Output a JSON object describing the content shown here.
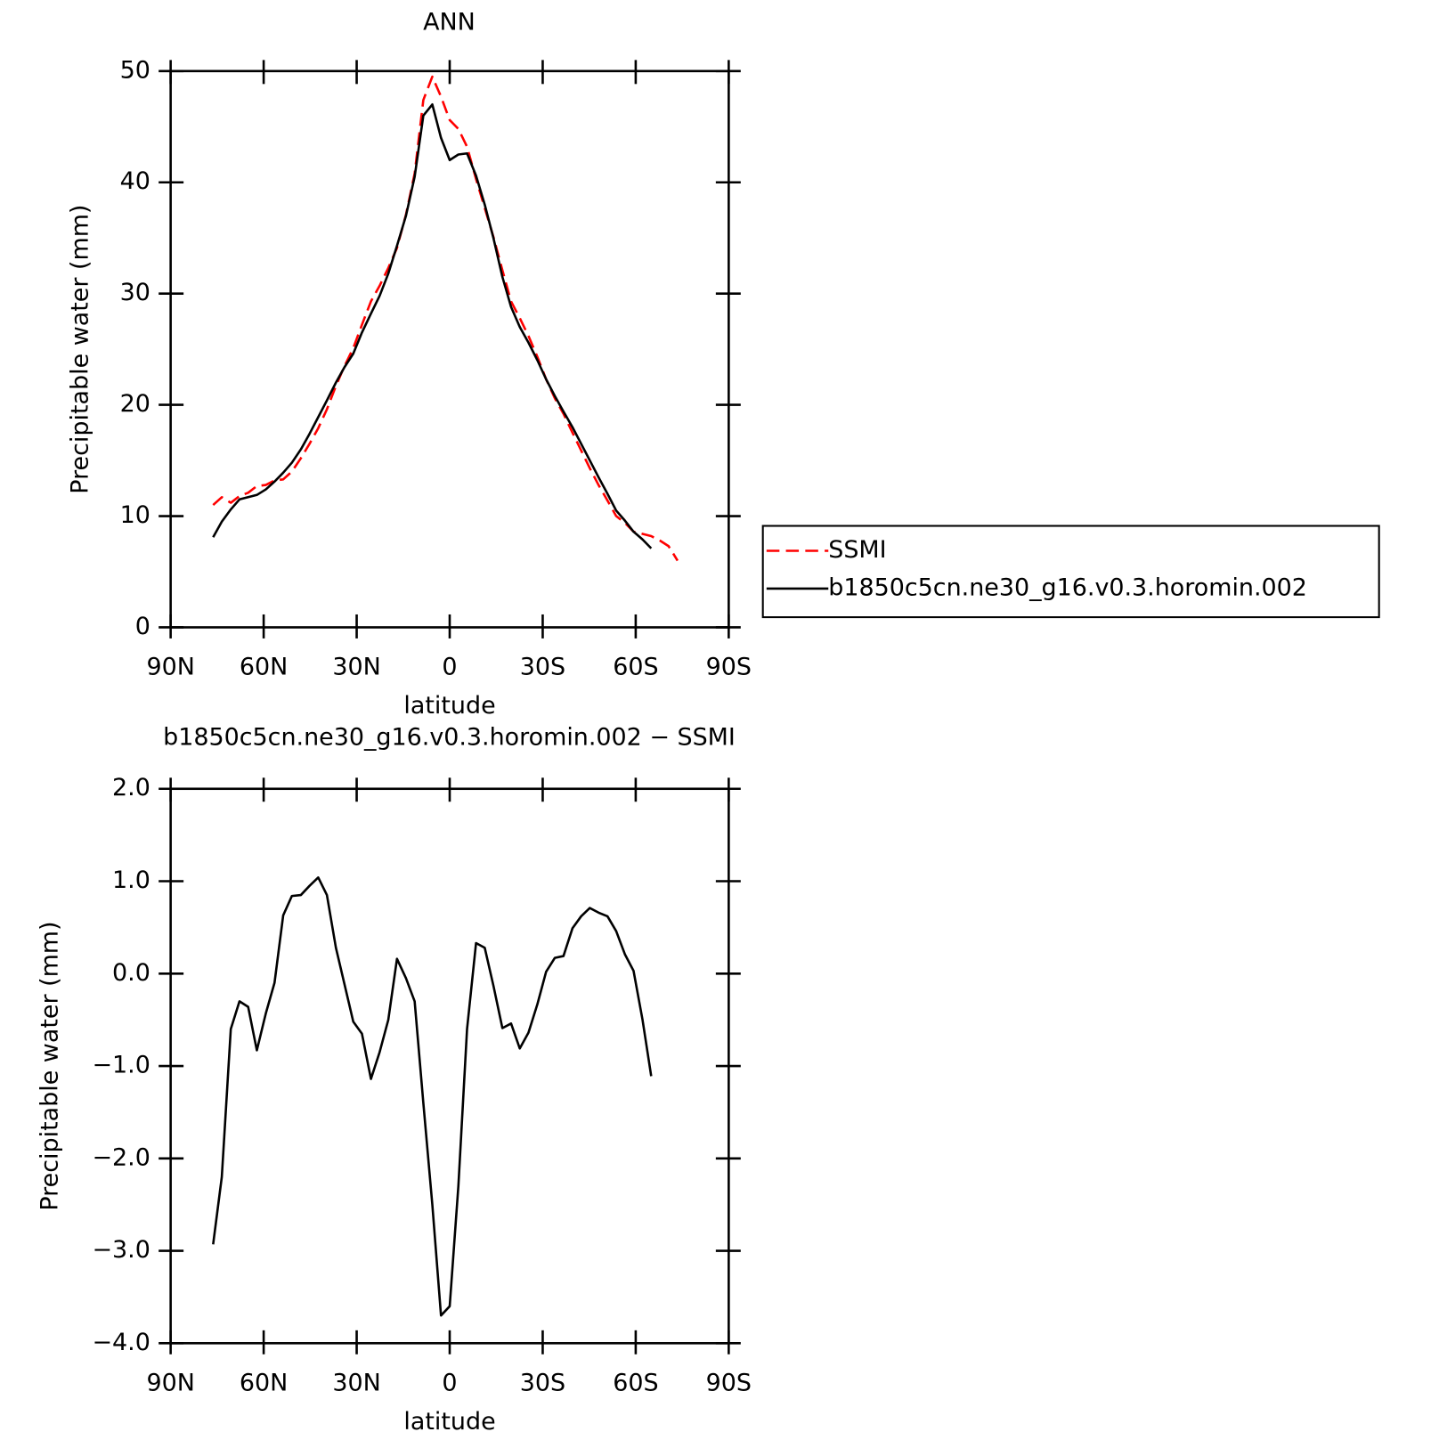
{
  "chart_data": [
    {
      "type": "line",
      "title": "ANN",
      "xlabel": "latitude",
      "ylabel": "Precipitable water (mm)",
      "xlim": [
        90,
        -90
      ],
      "xticks": [
        {
          "value": 90,
          "label": "90N"
        },
        {
          "value": 60,
          "label": "60N"
        },
        {
          "value": 30,
          "label": "30N"
        },
        0,
        {
          "value": -30,
          "label": "30S"
        },
        {
          "value": -60,
          "label": "60S"
        },
        {
          "value": -90,
          "label": "90S"
        }
      ],
      "ylim": [
        0,
        50
      ],
      "yticks": [
        0,
        10,
        20,
        30,
        40,
        50
      ],
      "legend": "outside-right",
      "series": [
        {
          "name": "SSMI",
          "color": "#ff0000",
          "dash": true,
          "x": [
            76.3,
            73.5,
            70.6,
            67.8,
            65.0,
            62.2,
            59.3,
            56.5,
            53.7,
            50.9,
            48.0,
            45.2,
            42.4,
            39.6,
            36.7,
            33.9,
            31.1,
            28.3,
            25.4,
            22.6,
            19.8,
            17.0,
            14.1,
            11.3,
            8.5,
            5.6,
            2.8,
            0.0,
            -2.8,
            -5.6,
            -8.5,
            -11.3,
            -14.1,
            -17.0,
            -19.8,
            -22.6,
            -25.4,
            -28.3,
            -31.1,
            -33.9,
            -36.7,
            -39.6,
            -42.4,
            -45.2,
            -48.0,
            -50.9,
            -53.7,
            -56.5,
            -59.3,
            -62.2,
            -65.0,
            -67.8,
            -70.6,
            -73.5
          ],
          "values": [
            11.0,
            11.7,
            11.2,
            11.8,
            12.1,
            12.7,
            12.8,
            13.2,
            13.3,
            14.0,
            15.2,
            16.5,
            17.9,
            19.6,
            21.7,
            23.5,
            25.1,
            27.2,
            29.3,
            30.7,
            32.3,
            34.1,
            37.1,
            40.8,
            47.4,
            49.5,
            47.7,
            45.6,
            44.8,
            43.2,
            40.3,
            37.7,
            35.1,
            32.1,
            29.3,
            27.8,
            26.2,
            24.3,
            22.3,
            20.6,
            19.2,
            17.5,
            15.9,
            14.3,
            12.8,
            11.4,
            10.0,
            9.4,
            8.6,
            8.4,
            8.2,
            7.8,
            7.3,
            6.0
          ]
        },
        {
          "name": "b1850c5cn.ne30_g16.v0.3.horomin.002",
          "color": "#000000",
          "dash": false,
          "x": [
            76.3,
            73.5,
            70.6,
            67.8,
            65.0,
            62.2,
            59.3,
            56.5,
            53.7,
            50.9,
            48.0,
            45.2,
            42.4,
            39.6,
            36.7,
            33.9,
            31.1,
            28.3,
            25.4,
            22.6,
            19.8,
            17.0,
            14.1,
            11.3,
            8.5,
            5.6,
            2.8,
            0.0,
            -2.8,
            -5.6,
            -8.5,
            -11.3,
            -14.1,
            -17.0,
            -19.8,
            -22.6,
            -25.4,
            -28.3,
            -31.1,
            -33.9,
            -36.7,
            -39.6,
            -42.4,
            -45.2,
            -48.0,
            -50.9,
            -53.7,
            -56.5,
            -59.3,
            -62.2,
            -65.0
          ],
          "values": [
            8.1,
            9.5,
            10.6,
            11.5,
            11.7,
            11.9,
            12.4,
            13.1,
            13.9,
            14.8,
            16.0,
            17.4,
            18.9,
            20.4,
            22.0,
            23.4,
            24.6,
            26.5,
            28.2,
            29.8,
            31.8,
            34.3,
            37.0,
            40.5,
            46.0,
            47.0,
            44.0,
            42.0,
            42.5,
            42.6,
            40.6,
            38.0,
            35.0,
            31.5,
            28.8,
            27.0,
            25.6,
            24.0,
            22.3,
            20.8,
            19.4,
            18.0,
            16.5,
            15.0,
            13.5,
            12.0,
            10.5,
            9.6,
            8.6,
            7.9,
            7.1
          ]
        }
      ]
    },
    {
      "type": "line",
      "title": "b1850c5cn.ne30_g16.v0.3.horomin.002 − SSMI",
      "xlabel": "latitude",
      "ylabel": "Precipitable water (mm)",
      "xlim": [
        90,
        -90
      ],
      "xticks": [
        {
          "value": 90,
          "label": "90N"
        },
        {
          "value": 60,
          "label": "60N"
        },
        {
          "value": 30,
          "label": "30N"
        },
        0,
        {
          "value": -30,
          "label": "30S"
        },
        {
          "value": -60,
          "label": "60S"
        },
        {
          "value": -90,
          "label": "90S"
        }
      ],
      "ylim": [
        -4,
        2
      ],
      "yticks": [
        {
          "value": -4,
          "label": "−4.0"
        },
        {
          "value": -3,
          "label": "−3.0"
        },
        {
          "value": -2,
          "label": "−2.0"
        },
        {
          "value": -1,
          "label": "−1.0"
        },
        {
          "value": 0,
          "label": "0.0"
        },
        {
          "value": 1,
          "label": "1.0"
        },
        {
          "value": 2,
          "label": "2.0"
        }
      ],
      "series": [
        {
          "color": "#000000",
          "dash": false,
          "x": [
            76.3,
            73.5,
            70.6,
            67.8,
            65.0,
            62.2,
            59.3,
            56.5,
            53.7,
            50.9,
            48.0,
            45.2,
            42.4,
            39.6,
            36.7,
            33.9,
            31.1,
            28.3,
            25.4,
            22.6,
            19.8,
            17.0,
            14.1,
            11.3,
            8.5,
            5.6,
            2.8,
            0.0,
            -2.8,
            -5.6,
            -8.5,
            -11.3,
            -14.1,
            -17.0,
            -19.8,
            -22.6,
            -25.4,
            -28.3,
            -31.1,
            -33.9,
            -36.7,
            -39.6,
            -42.4,
            -45.2,
            -48.0,
            -50.9,
            -53.7,
            -56.5,
            -59.3,
            -62.2,
            -65.0
          ],
          "values": [
            -2.93,
            -2.2,
            -0.6,
            -0.3,
            -0.36,
            -0.83,
            -0.43,
            -0.1,
            0.63,
            0.84,
            0.85,
            0.95,
            1.04,
            0.85,
            0.28,
            -0.12,
            -0.52,
            -0.65,
            -1.14,
            -0.85,
            -0.5,
            0.16,
            -0.05,
            -0.3,
            -1.4,
            -2.5,
            -3.7,
            -3.6,
            -2.3,
            -0.6,
            0.33,
            0.28,
            -0.13,
            -0.59,
            -0.54,
            -0.81,
            -0.64,
            -0.33,
            0.02,
            0.17,
            0.19,
            0.49,
            0.62,
            0.71,
            0.66,
            0.62,
            0.46,
            0.21,
            0.03,
            -0.5,
            -1.11
          ]
        }
      ]
    }
  ]
}
